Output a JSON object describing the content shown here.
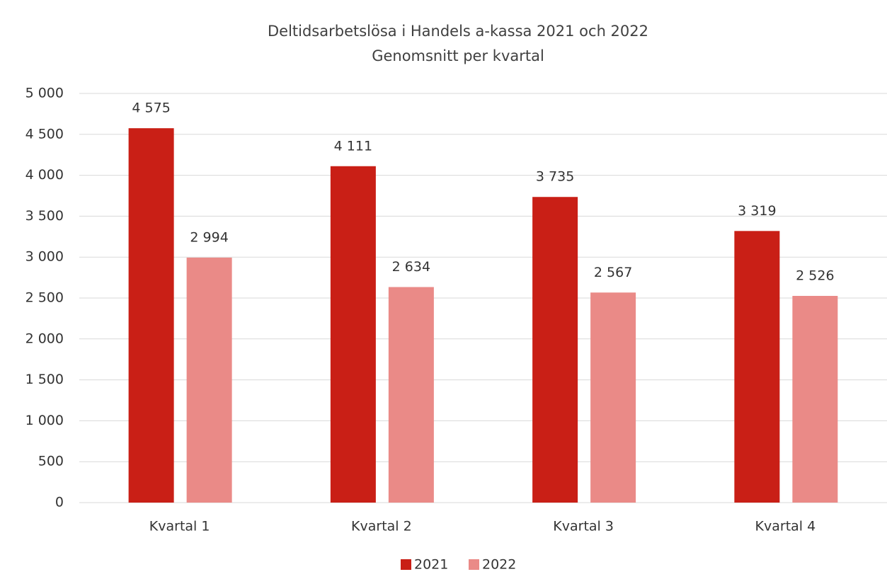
{
  "chart_data": {
    "type": "bar",
    "title": "Deltidsarbetslösa i Handels a-kassa 2021 och 2022",
    "subtitle": "Genomsnitt per kvartal",
    "categories": [
      "Kvartal 1",
      "Kvartal 2",
      "Kvartal 3",
      "Kvartal 4"
    ],
    "series": [
      {
        "name": "2021",
        "color": "#c91f16",
        "values": [
          4575,
          4111,
          3735,
          3319
        ],
        "value_labels": [
          "4 575",
          "4 111",
          "3 735",
          "3 319"
        ]
      },
      {
        "name": "2022",
        "color": "#ea8a87",
        "values": [
          2994,
          2634,
          2567,
          2526
        ],
        "value_labels": [
          "2 994",
          "2 634",
          "2 567",
          "2 526"
        ]
      }
    ],
    "ylim": [
      0,
      5000
    ],
    "yticks": [
      0,
      500,
      {
        "value": 1000,
        "label": "1 000"
      },
      {
        "value": 1500,
        "label": "1 500"
      },
      {
        "value": 2000,
        "label": "2 000"
      },
      {
        "value": 2500,
        "label": "2 500"
      },
      {
        "value": 3000,
        "label": "3 000"
      },
      {
        "value": 3500,
        "label": "3 500"
      },
      {
        "value": 4000,
        "label": "4 000"
      },
      {
        "value": 4500,
        "label": "4 500"
      },
      {
        "value": 5000,
        "label": "5 000"
      }
    ],
    "grid": true,
    "legend": "bottom"
  }
}
